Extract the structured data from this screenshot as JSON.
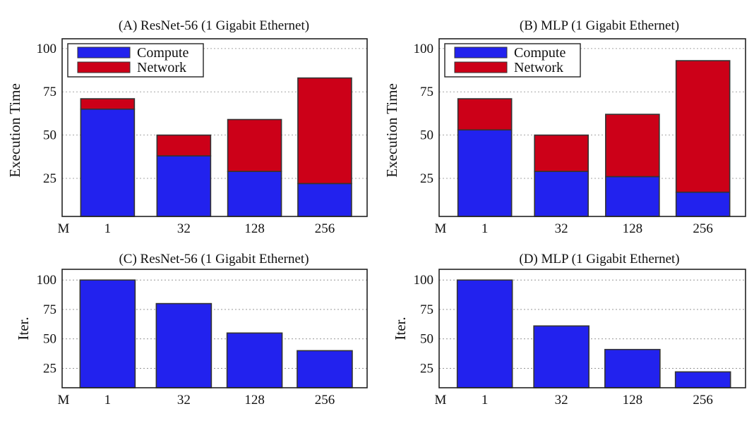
{
  "chart_data": [
    {
      "panel": "A",
      "type": "bar",
      "stacked": true,
      "title": "(A) ResNet-56 (1 Gigabit Ethernet)",
      "ylabel": "Execution Time",
      "x_prefix": "M",
      "categories": [
        "1",
        "32",
        "128",
        "256"
      ],
      "series": [
        {
          "name": "Compute",
          "color": "#2222ee",
          "values": [
            65,
            38,
            29,
            22
          ]
        },
        {
          "name": "Network",
          "color": "#cc0018",
          "values": [
            6,
            12,
            30,
            61
          ]
        }
      ],
      "yticks": [
        25,
        50,
        75,
        100
      ],
      "ylim": [
        0,
        100
      ],
      "grid": true,
      "legend": "top-left"
    },
    {
      "panel": "B",
      "type": "bar",
      "stacked": true,
      "title": "(B) MLP (1 Gigabit Ethernet)",
      "ylabel": "Execution Time",
      "x_prefix": "M",
      "categories": [
        "1",
        "32",
        "128",
        "256"
      ],
      "series": [
        {
          "name": "Compute",
          "color": "#2222ee",
          "values": [
            53,
            29,
            26,
            17
          ]
        },
        {
          "name": "Network",
          "color": "#cc0018",
          "values": [
            18,
            21,
            36,
            76
          ]
        }
      ],
      "yticks": [
        25,
        50,
        75,
        100
      ],
      "ylim": [
        0,
        100
      ],
      "grid": true,
      "legend": "top-left"
    },
    {
      "panel": "C",
      "type": "bar",
      "title": "(C) ResNet-56 (1 Gigabit Ethernet)",
      "ylabel": "Iter.",
      "x_prefix": "M",
      "categories": [
        "1",
        "32",
        "128",
        "256"
      ],
      "series": [
        {
          "color": "#2222ee",
          "values": [
            100,
            80,
            55,
            40
          ]
        }
      ],
      "yticks": [
        25,
        50,
        75,
        100
      ],
      "ylim": [
        0,
        100
      ],
      "grid": true
    },
    {
      "panel": "D",
      "type": "bar",
      "title": "(D) MLP (1 Gigabit Ethernet)",
      "ylabel": "Iter.",
      "x_prefix": "M",
      "categories": [
        "1",
        "32",
        "128",
        "256"
      ],
      "series": [
        {
          "color": "#2222ee",
          "values": [
            100,
            61,
            41,
            22
          ]
        }
      ],
      "yticks": [
        25,
        50,
        75,
        100
      ],
      "ylim": [
        0,
        100
      ],
      "grid": true
    }
  ]
}
